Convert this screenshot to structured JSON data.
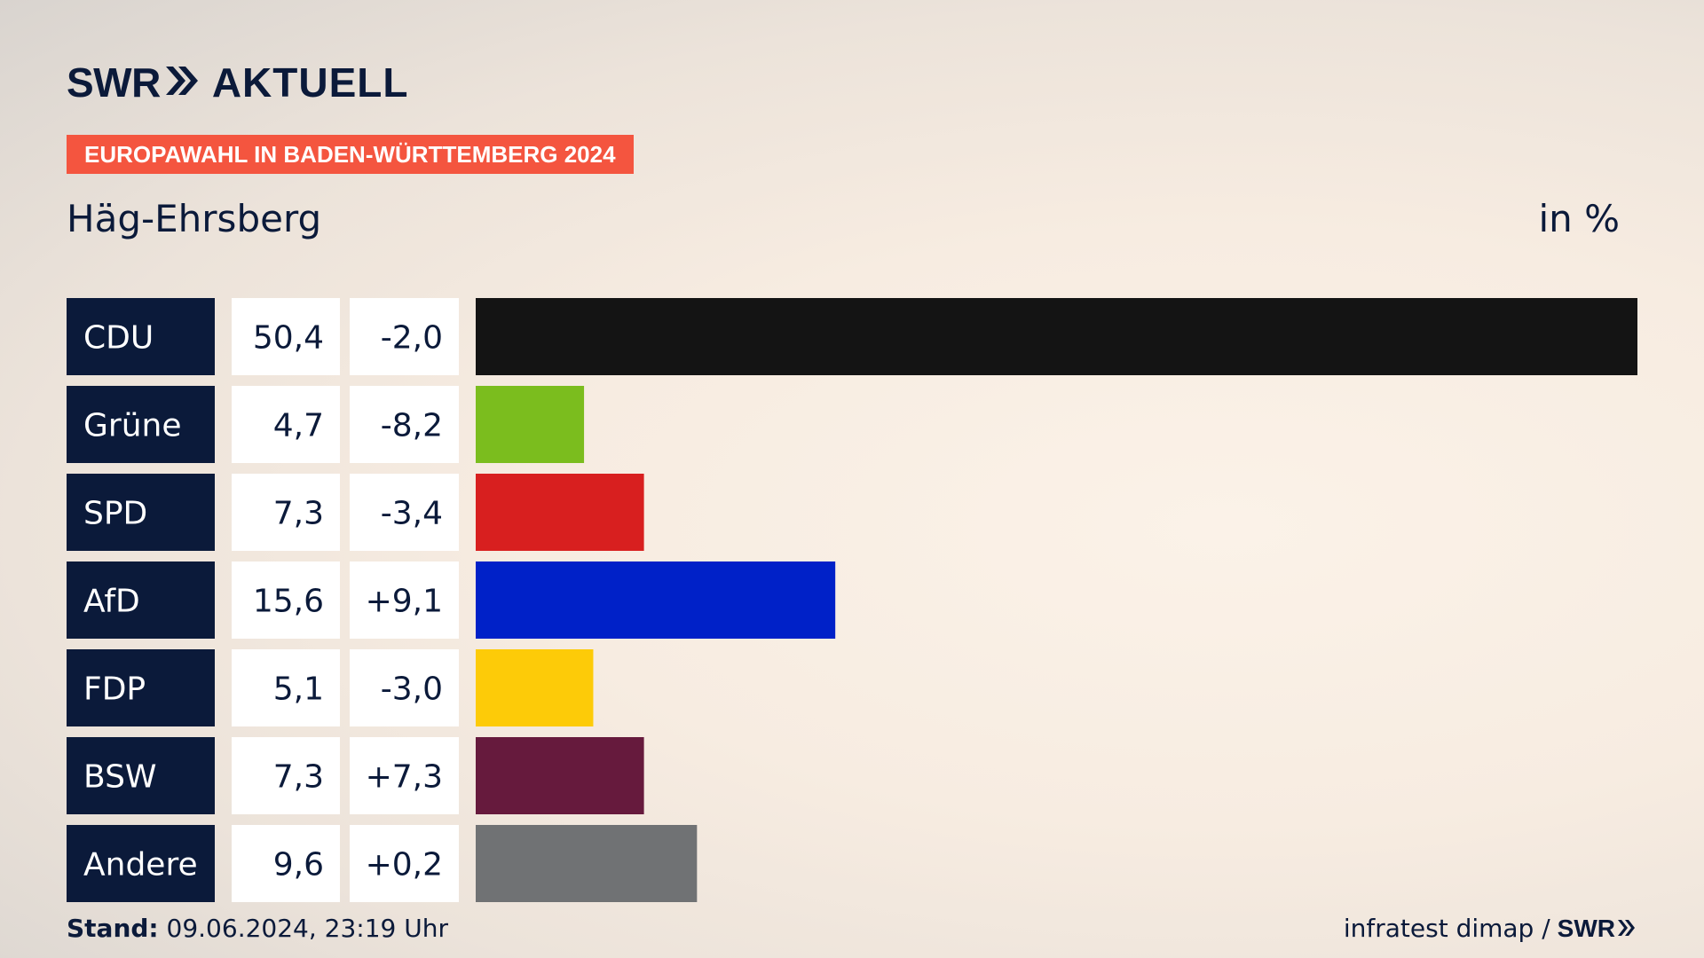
{
  "header": {
    "logo_swr": "SWR",
    "logo_aktuell": "AKTUELL",
    "badge": "EUROPAWAHL IN BADEN-WÜRTTEMBERG 2024",
    "place": "Häg-Ehrsberg",
    "unit": "in %"
  },
  "footer": {
    "stand_label": "Stand:",
    "stand_value": "09.06.2024, 23:19 Uhr",
    "source": "infratest dimap /",
    "source_brand": "SWR"
  },
  "chart_data": {
    "type": "bar",
    "orientation": "horizontal",
    "categories": [
      "CDU",
      "Grüne",
      "SPD",
      "AfD",
      "FDP",
      "BSW",
      "Andere"
    ],
    "values": [
      50.4,
      4.7,
      7.3,
      15.6,
      5.1,
      7.3,
      9.6
    ],
    "value_labels": [
      "50,4",
      "4,7",
      "7,3",
      "15,6",
      "5,1",
      "7,3",
      "9,6"
    ],
    "change_labels": [
      "-2,0",
      "-8,2",
      "-3,4",
      "+9,1",
      "-3,0",
      "+7,3",
      "+0,2"
    ],
    "changes": [
      -2.0,
      -8.2,
      -3.4,
      9.1,
      -3.0,
      7.3,
      0.2
    ],
    "colors": [
      "#141414",
      "#7bbd1e",
      "#d81f1f",
      "#0021c8",
      "#fdcb08",
      "#661a3d",
      "#707274"
    ],
    "xlim": [
      0,
      50.4
    ],
    "grid": false,
    "legend": "none"
  }
}
